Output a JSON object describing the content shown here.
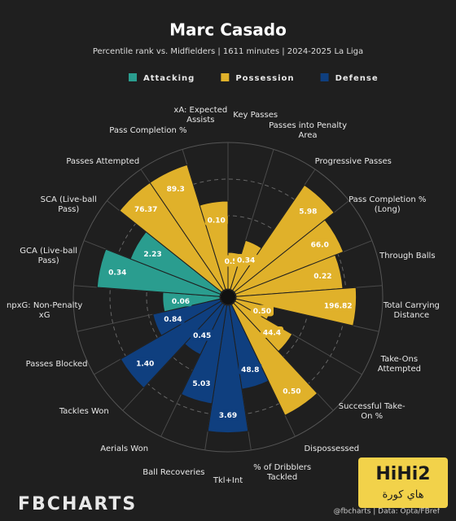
{
  "chart_data": {
    "type": "polar-bar",
    "title": "Marc Casado",
    "subtitle": "Percentile rank vs. Midfielders | 1611 minutes | 2024-2025 La Liga",
    "legend": [
      {
        "name": "Attacking",
        "color": "#2a9d8f"
      },
      {
        "name": "Possession",
        "color": "#e0b12a"
      },
      {
        "name": "Defense",
        "color": "#0f3f7f"
      }
    ],
    "categories": [
      "Key Passes",
      "Passes into Penalty Area",
      "Progressive Passes",
      "Pass Completion % (Long)",
      "Through Balls",
      "Total Carrying Distance",
      "Take-Ons Attempted",
      "Successful Take-On %",
      "Dispossessed",
      "% of Dribblers Tackled",
      "Tkl+Int",
      "Ball Recoveries",
      "Aerials Won",
      "Tackles Won",
      "Passes Blocked",
      "npxG: Non-Penalty xG",
      "GCA (Live-ball Pass)",
      "SCA (Live-ball Pass)",
      "Passes Attempted",
      "Pass Completion %",
      "xA: Expected Assists"
    ],
    "values": [
      25,
      35,
      87,
      79,
      73,
      82,
      25,
      45,
      84,
      58,
      87,
      68,
      38,
      79,
      47,
      39,
      84,
      66,
      89,
      89,
      60
    ],
    "stat_labels": [
      "0.50",
      "0.34",
      "5.98",
      "66.0",
      "0.22",
      "196.82",
      "0.50",
      "44.4",
      "0.50",
      "48.8",
      "3.69",
      "5.03",
      "0.45",
      "1.40",
      "0.84",
      "0.06",
      "0.34",
      "2.23",
      "76.37",
      "89.3",
      "0.10"
    ],
    "colors": [
      "#e0b12a",
      "#e0b12a",
      "#e0b12a",
      "#e0b12a",
      "#e0b12a",
      "#e0b12a",
      "#e0b12a",
      "#e0b12a",
      "#e0b12a",
      "#0f3f7f",
      "#0f3f7f",
      "#0f3f7f",
      "#0f3f7f",
      "#0f3f7f",
      "#0f3f7f",
      "#2a9d8f",
      "#2a9d8f",
      "#2a9d8f",
      "#e0b12a",
      "#e0b12a",
      "#e0b12a"
    ],
    "rlim": [
      0,
      100
    ],
    "rticks": [
      25,
      50,
      75,
      100
    ],
    "brand": "FBCHARTS",
    "credit": "@fbcharts | Data: Opta/FBref",
    "watermark": {
      "logo": "HiHi2",
      "text": "هاي كورة"
    }
  }
}
